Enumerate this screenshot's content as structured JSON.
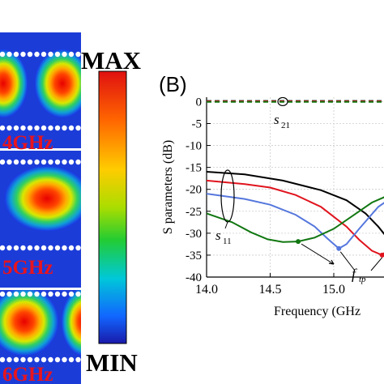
{
  "left_panel": {
    "frequency_labels": [
      "4GHz",
      "5GHz",
      "6GHz"
    ]
  },
  "colorbar": {
    "max_label": "MAX",
    "min_label": "MIN"
  },
  "chart_data": {
    "type": "line",
    "panel_label": "(B)",
    "xlabel": "Frequency (GHz",
    "ylabel": "S parameters (dB)",
    "xlim": [
      14.0,
      15.5
    ],
    "ylim": [
      -40,
      1
    ],
    "xticks": [
      "14.0",
      "14.5",
      "15.0"
    ],
    "yticks": [
      "0",
      "-5",
      "-10",
      "-15",
      "-20",
      "-25",
      "-30",
      "-35",
      "-40"
    ],
    "annotations": {
      "s21": {
        "main": "s",
        "sub": "21"
      },
      "s11": {
        "main": "s",
        "sub": "11"
      },
      "ftp": {
        "main": "f",
        "sub": "tp"
      }
    },
    "series": [
      {
        "color": "#000000",
        "style": "solid",
        "points": [
          [
            14.0,
            -16.0
          ],
          [
            14.3,
            -16.6
          ],
          [
            14.6,
            -18.0
          ],
          [
            14.9,
            -20.2
          ],
          [
            15.1,
            -22.5
          ],
          [
            15.25,
            -25.5
          ],
          [
            15.35,
            -28.5
          ],
          [
            15.42,
            -31.0
          ]
        ]
      },
      {
        "color": "#e0141e",
        "style": "solid",
        "points": [
          [
            14.0,
            -18.0
          ],
          [
            14.3,
            -18.8
          ],
          [
            14.5,
            -19.6
          ],
          [
            14.7,
            -21.3
          ],
          [
            14.9,
            -24.0
          ],
          [
            15.1,
            -28.5
          ],
          [
            15.2,
            -31.5
          ],
          [
            15.3,
            -34.0
          ],
          [
            15.38,
            -35.0
          ],
          [
            15.45,
            -33.0
          ],
          [
            15.5,
            -30.0
          ]
        ]
      },
      {
        "color": "#5577dd",
        "style": "solid",
        "points": [
          [
            14.0,
            -21.0
          ],
          [
            14.3,
            -22.2
          ],
          [
            14.5,
            -23.5
          ],
          [
            14.7,
            -25.8
          ],
          [
            14.85,
            -28.5
          ],
          [
            14.95,
            -31.2
          ],
          [
            15.04,
            -33.5
          ],
          [
            15.1,
            -32.5
          ],
          [
            15.2,
            -29.0
          ],
          [
            15.35,
            -24.0
          ],
          [
            15.5,
            -21.0
          ]
        ]
      },
      {
        "color": "#117711",
        "style": "solid",
        "points": [
          [
            14.0,
            -25.5
          ],
          [
            14.2,
            -27.5
          ],
          [
            14.35,
            -29.8
          ],
          [
            14.48,
            -31.4
          ],
          [
            14.6,
            -32.0
          ],
          [
            14.72,
            -31.9
          ],
          [
            14.85,
            -31.0
          ],
          [
            15.0,
            -29.0
          ],
          [
            15.15,
            -26.0
          ],
          [
            15.3,
            -23.0
          ],
          [
            15.42,
            -21.5
          ],
          [
            15.5,
            -21.0
          ]
        ]
      },
      {
        "color": "#000000",
        "style": "dashed",
        "points": [
          [
            14.0,
            0.15
          ],
          [
            15.5,
            0.15
          ]
        ]
      },
      {
        "color": "#e0141e",
        "style": "dashed",
        "points": [
          [
            14.0,
            0.05
          ],
          [
            15.5,
            0.05
          ]
        ]
      },
      {
        "color": "#117711",
        "style": "dashed",
        "points": [
          [
            14.0,
            -0.05
          ],
          [
            15.5,
            -0.05
          ]
        ]
      }
    ],
    "markers": [
      {
        "color": "#117711",
        "x": 14.72,
        "y": -31.9
      },
      {
        "color": "#5577dd",
        "x": 15.04,
        "y": -33.5
      },
      {
        "color": "#e0141e",
        "x": 15.38,
        "y": -35.0
      }
    ],
    "grid": true
  }
}
